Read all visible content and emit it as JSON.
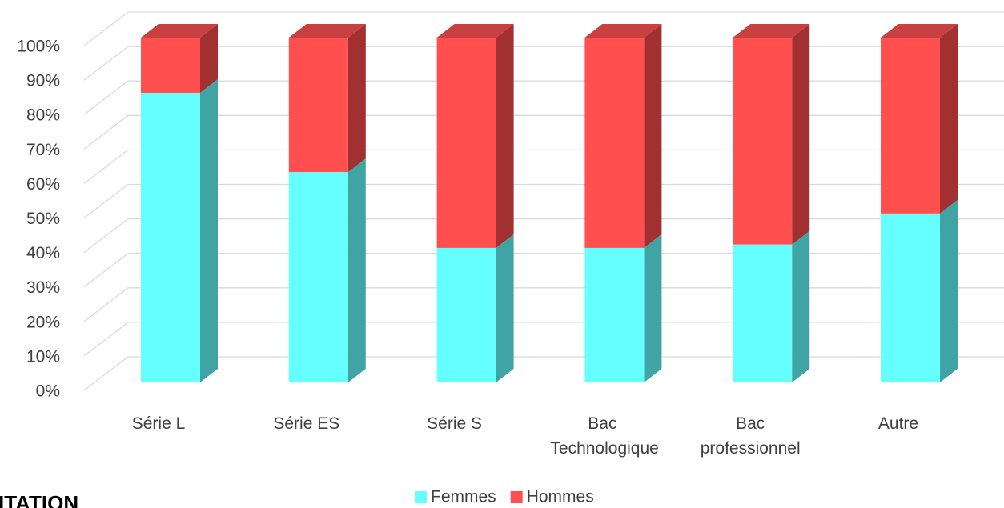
{
  "chart_data": {
    "type": "bar3d_stacked",
    "categories": [
      "Série L",
      "Série ES",
      "Série S",
      "Bac Technologique",
      "Bac professionnel",
      "Autre"
    ],
    "series": [
      {
        "name": "Femmes",
        "color": "#66ffff",
        "side_color": "#40a4a4",
        "top_color": "#55dddd",
        "values": [
          84,
          61,
          39,
          39,
          40,
          49
        ]
      },
      {
        "name": "Hommes",
        "color": "#ff4f4f",
        "side_color": "#a33030",
        "top_color": "#c94040",
        "values": [
          16,
          39,
          61,
          61,
          60,
          51
        ]
      }
    ],
    "ylim": [
      0,
      100
    ],
    "yticks": [
      {
        "value": 0,
        "label": "0%"
      },
      {
        "value": 10,
        "label": "10%"
      },
      {
        "value": 20,
        "label": "20%"
      },
      {
        "value": 30,
        "label": "30%"
      },
      {
        "value": 40,
        "label": "40%"
      },
      {
        "value": 50,
        "label": "50%"
      },
      {
        "value": 60,
        "label": "60%"
      },
      {
        "value": 70,
        "label": "70%"
      },
      {
        "value": 80,
        "label": "80%"
      },
      {
        "value": 90,
        "label": "90%"
      },
      {
        "value": 100,
        "label": "100%"
      }
    ],
    "grid": true,
    "legend": "bottom",
    "caption": "ITATION"
  }
}
